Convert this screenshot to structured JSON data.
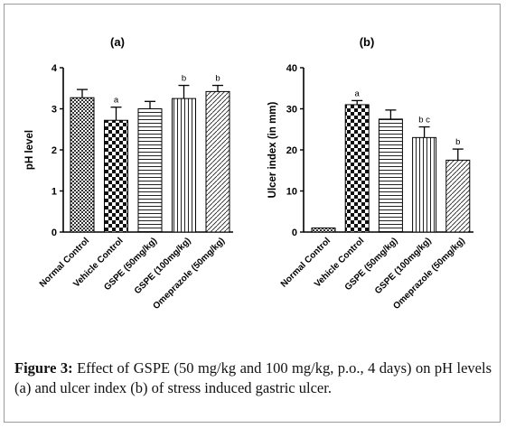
{
  "caption": {
    "label": "Figure 3:",
    "text": " Effect of GSPE (50 mg/kg and 100 mg/kg, p.o., 4 days) on pH levels (a) and ulcer index (b) of stress induced gastric ulcer."
  },
  "chart_data": [
    {
      "type": "bar",
      "title": "(a)",
      "xlabel": "",
      "ylabel": "pH level",
      "ylim": [
        0,
        4
      ],
      "yticks": [
        0,
        1,
        2,
        3,
        4
      ],
      "categories": [
        "Normal Control",
        "Vehicle Control",
        "GSPE (50mg/kg)",
        "GSPE (100mg/kg)",
        "Omeprazole (50mg/kg)"
      ],
      "values": [
        3.27,
        2.72,
        3.0,
        3.25,
        3.42
      ],
      "errors": [
        0.2,
        0.32,
        0.18,
        0.32,
        0.15
      ],
      "annotations": [
        "",
        "a",
        "",
        "b",
        "b"
      ],
      "patterns": [
        "checker-small",
        "checker-large",
        "horizontal",
        "vertical",
        "diagonal"
      ]
    },
    {
      "type": "bar",
      "title": "(b)",
      "xlabel": "",
      "ylabel": "Ulcer index (in mm)",
      "ylim": [
        0,
        40
      ],
      "yticks": [
        0,
        10,
        20,
        30,
        40
      ],
      "categories": [
        "Normal Control",
        "Vehicle Control",
        "GSPE (50mg/kg)",
        "GSPE (100mg/kg)",
        "Omeprazole (50mg/kg)"
      ],
      "values": [
        1.0,
        31.0,
        27.5,
        23.0,
        17.5
      ],
      "errors": [
        0,
        1.0,
        2.2,
        2.6,
        2.7
      ],
      "annotations": [
        "",
        "a",
        "",
        "b c",
        "b"
      ],
      "patterns": [
        "checker-small",
        "checker-large",
        "horizontal",
        "vertical",
        "diagonal"
      ]
    }
  ]
}
